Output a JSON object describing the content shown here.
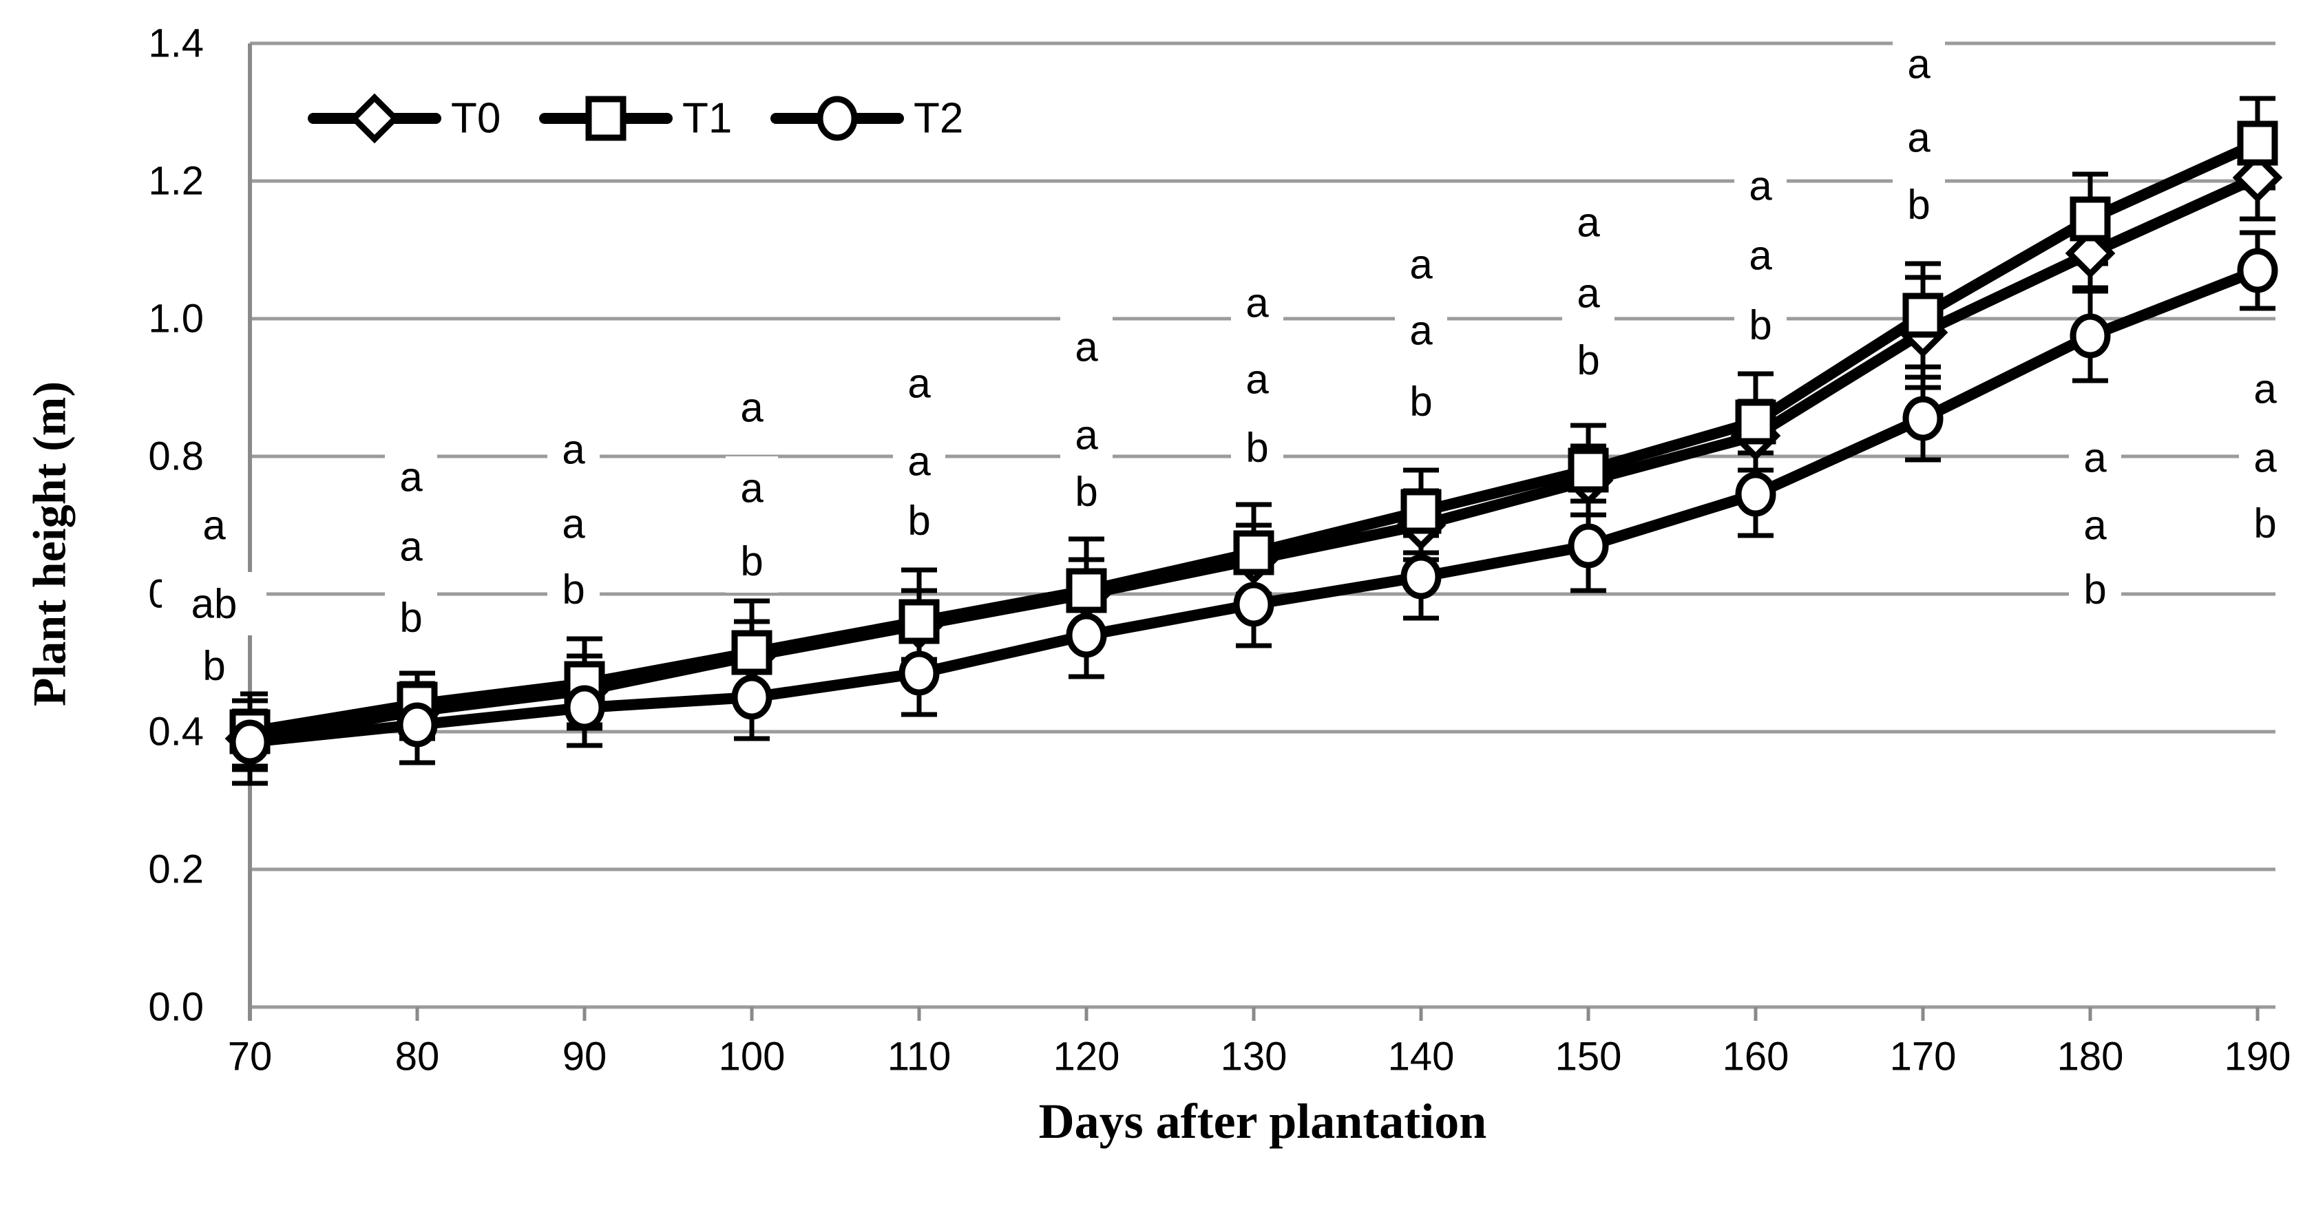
{
  "chart_data": {
    "type": "line",
    "title": "",
    "xlabel": "Days after plantation",
    "ylabel": "Plant height (m)",
    "x": [
      70,
      80,
      90,
      100,
      110,
      120,
      130,
      140,
      150,
      160,
      170,
      180,
      190
    ],
    "xlim": [
      70,
      190
    ],
    "ylim": [
      0.0,
      1.4
    ],
    "yticks": [
      "0.0",
      "0.2",
      "0.4",
      "0.6",
      "0.8",
      "1.0",
      "1.2",
      "1.4"
    ],
    "grid": "horizontal",
    "legend_position": "top-left-inside",
    "series": [
      {
        "name": "T0",
        "marker": "diamond",
        "values": [
          0.39,
          0.43,
          0.46,
          0.51,
          0.555,
          0.6,
          0.65,
          0.7,
          0.765,
          0.83,
          0.98,
          1.095,
          1.205
        ],
        "errors": [
          0.04,
          0.04,
          0.05,
          0.05,
          0.05,
          0.05,
          0.05,
          0.05,
          0.05,
          0.05,
          0.08,
          0.05,
          0.06
        ]
      },
      {
        "name": "T1",
        "marker": "square",
        "values": [
          0.4,
          0.44,
          0.47,
          0.515,
          0.56,
          0.605,
          0.66,
          0.72,
          0.78,
          0.85,
          1.005,
          1.145,
          1.255
        ],
        "errors": [
          0.055,
          0.045,
          0.065,
          0.075,
          0.075,
          0.075,
          0.07,
          0.06,
          0.065,
          0.07,
          0.075,
          0.065,
          0.065
        ]
      },
      {
        "name": "T2",
        "marker": "circle",
        "values": [
          0.385,
          0.41,
          0.435,
          0.45,
          0.485,
          0.54,
          0.585,
          0.625,
          0.67,
          0.745,
          0.855,
          0.975,
          1.07
        ],
        "errors": [
          0.06,
          0.055,
          0.055,
          0.06,
          0.06,
          0.06,
          0.06,
          0.06,
          0.065,
          0.06,
          0.06,
          0.065,
          0.055
        ]
      }
    ],
    "significance_letters": [
      {
        "day": 70,
        "letters": [
          "a",
          "ab",
          "b"
        ],
        "values": [
          0.7,
          0.586,
          0.496
        ],
        "dx": -52
      },
      {
        "day": 80,
        "letters": [
          "a",
          "a",
          "b"
        ],
        "values": [
          0.77,
          0.669,
          0.566
        ],
        "dx": -9
      },
      {
        "day": 90,
        "letters": [
          "a",
          "a",
          "b"
        ],
        "values": [
          0.81,
          0.702,
          0.607
        ],
        "dx": -16
      },
      {
        "day": 100,
        "letters": [
          "a",
          "a",
          "b"
        ],
        "values": [
          0.871,
          0.754,
          0.648
        ],
        "dx": 0
      },
      {
        "day": 110,
        "letters": [
          "a",
          "a",
          "b"
        ],
        "values": [
          0.906,
          0.793,
          0.707
        ],
        "dx": 0
      },
      {
        "day": 120,
        "letters": [
          "a",
          "a",
          "b"
        ],
        "values": [
          0.959,
          0.831,
          0.749
        ],
        "dx": 0
      },
      {
        "day": 130,
        "letters": [
          "a",
          "a",
          "b"
        ],
        "values": [
          1.023,
          0.912,
          0.813
        ],
        "dx": 5
      },
      {
        "day": 140,
        "letters": [
          "a",
          "a",
          "b"
        ],
        "values": [
          1.079,
          0.983,
          0.88
        ],
        "dx": 0
      },
      {
        "day": 150,
        "letters": [
          "a",
          "a",
          "b"
        ],
        "values": [
          1.14,
          1.037,
          0.94
        ],
        "dx": 0
      },
      {
        "day": 160,
        "letters": [
          "a",
          "a",
          "b"
        ],
        "values": [
          1.193,
          1.092,
          0.991
        ],
        "dx": 7
      },
      {
        "day": 170,
        "letters": [
          "a",
          "a",
          "b"
        ],
        "values": [
          1.37,
          1.263,
          1.166
        ],
        "dx": -6
      },
      {
        "day": 180,
        "letters": [
          "a",
          "a",
          "b"
        ],
        "values": [
          0.798,
          0.7,
          0.607
        ],
        "dx": 7
      },
      {
        "day": 190,
        "letters": [
          "a",
          "a",
          "b"
        ],
        "values": [
          0.898,
          0.798,
          0.703
        ],
        "dx": 11
      }
    ],
    "colors": {
      "line": "#000000",
      "marker_fill": "#ffffff",
      "grid": "#9b9b9b",
      "axis": "#8a8a8a",
      "text": "#000000",
      "background": "#ffffff"
    }
  }
}
